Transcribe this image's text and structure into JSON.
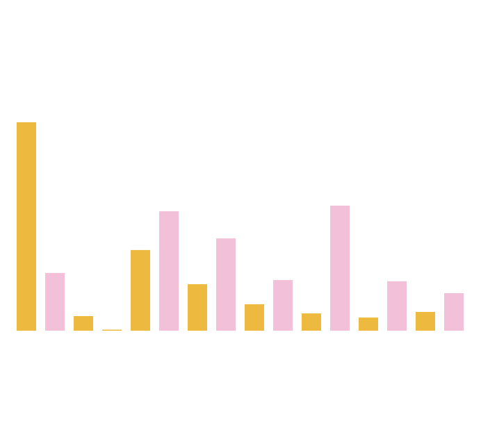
{
  "chart_data": {
    "type": "bar",
    "categories": [
      "",
      "",
      "",
      "",
      "",
      "",
      "",
      "",
      "",
      "",
      "",
      "",
      "",
      "",
      "",
      ""
    ],
    "values": [
      100,
      27.7,
      7,
      0.5,
      38.7,
      57.3,
      22.3,
      44.3,
      12.7,
      24.3,
      8.3,
      60,
      6.3,
      23.7,
      9,
      18
    ],
    "colors": [
      "#EDB93F",
      "#F2C1D9",
      "#EDB93F",
      "#EDB93F",
      "#EDB93F",
      "#F2C1D9",
      "#EDB93F",
      "#F2C1D9",
      "#EDB93F",
      "#F2C1D9",
      "#EDB93F",
      "#F2C1D9",
      "#EDB93F",
      "#F2C1D9",
      "#EDB93F",
      "#F2C1D9"
    ],
    "ylim": [
      0,
      100
    ],
    "grid": false,
    "legend": "none"
  }
}
